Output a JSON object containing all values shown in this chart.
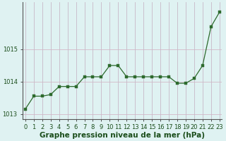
{
  "x": [
    0,
    1,
    2,
    3,
    4,
    5,
    6,
    7,
    8,
    9,
    10,
    11,
    12,
    13,
    14,
    15,
    16,
    17,
    18,
    19,
    20,
    21,
    22,
    23
  ],
  "y": [
    1013.15,
    1013.55,
    1013.55,
    1013.6,
    1013.85,
    1013.85,
    1013.85,
    1014.15,
    1014.15,
    1014.15,
    1014.5,
    1014.5,
    1014.15,
    1014.15,
    1014.15,
    1014.15,
    1014.15,
    1014.15,
    1013.95,
    1013.95,
    1014.1,
    1014.5,
    1015.7,
    1016.15
  ],
  "line_color": "#2d6a2d",
  "marker_color": "#2d6a2d",
  "bg_color": "#dff2f2",
  "grid_color_h": "#d4b8c8",
  "grid_color_v": "#c8b8c8",
  "title": "Graphe pression niveau de la mer (hPa)",
  "xlabel_ticks": [
    0,
    1,
    2,
    3,
    4,
    5,
    6,
    7,
    8,
    9,
    10,
    11,
    12,
    13,
    14,
    15,
    16,
    17,
    18,
    19,
    20,
    21,
    22,
    23
  ],
  "ylim": [
    1012.85,
    1016.45
  ],
  "yticks": [
    1013,
    1014,
    1015
  ],
  "title_fontsize": 7.5,
  "tick_fontsize": 6.0,
  "label_color": "#1a4d1a"
}
